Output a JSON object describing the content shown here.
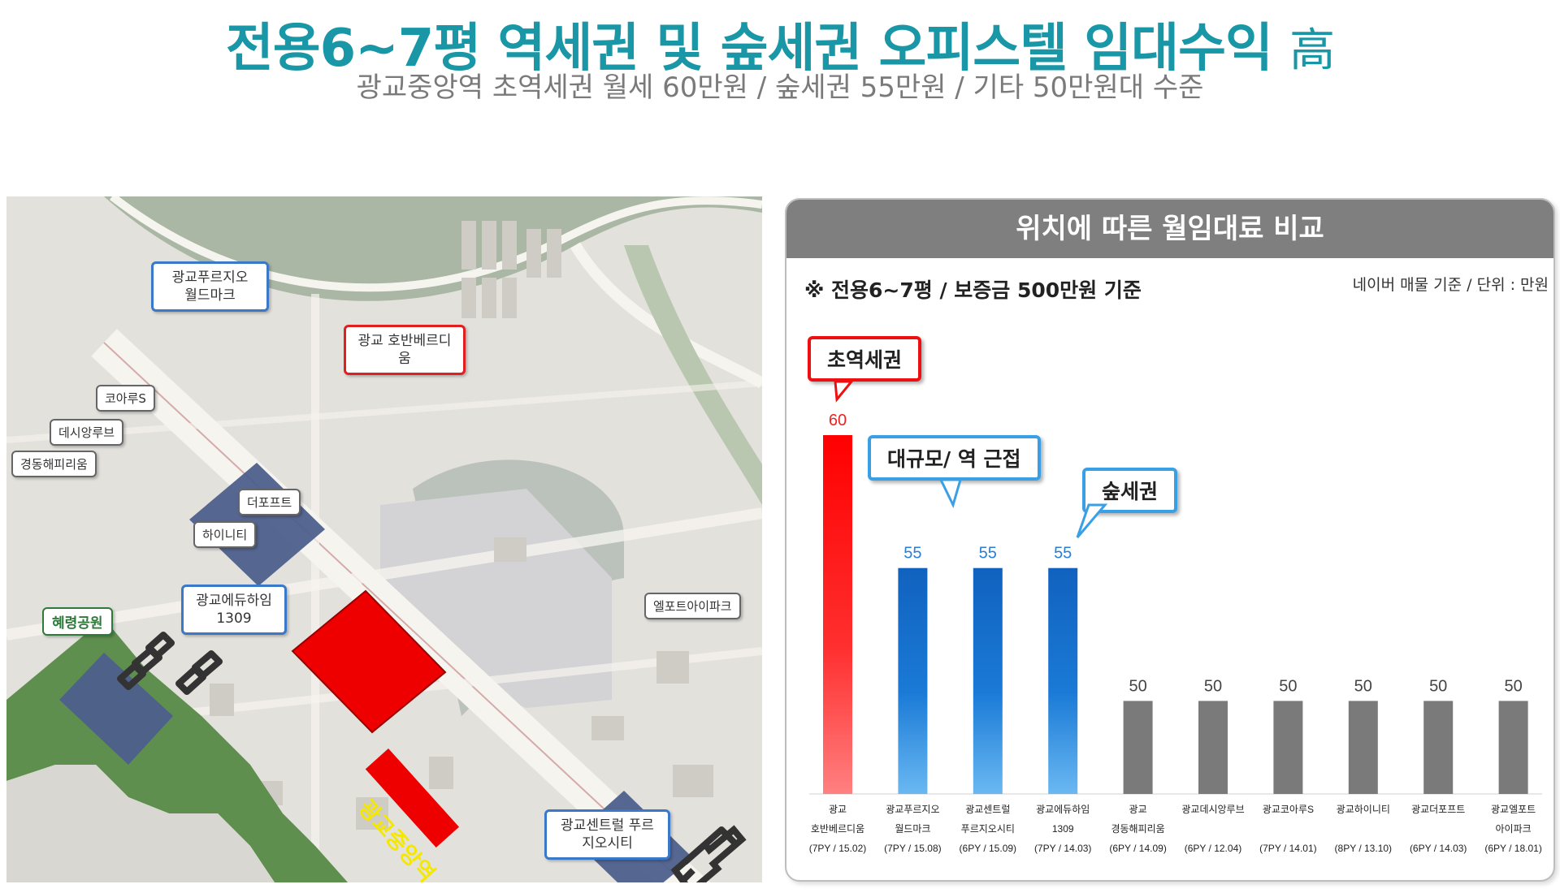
{
  "header": {
    "title": "전용6~7평 역세권 및 숲세권 오피스텔 임대수익",
    "title_suffix": "高",
    "subtitle": "광교중앙역 초역세권 월세 60만원 / 숲세권 55만원 / 기타 50만원대 수준"
  },
  "map": {
    "station": "광교중앙역",
    "park": "혜령공원",
    "callouts": {
      "fuzio_world": "광교푸르지오 월드마크",
      "hoban": "광교 호반베르디움",
      "koarus": "코아루S",
      "desiang": "데시앙루브",
      "gyeongdong": "경동해피리움",
      "theforte": "더포프트",
      "hiniti": "하이니티",
      "eduhaim": "광교에듀하임 1309",
      "elforte": "엘포트아이파크",
      "central": "광교센트럴 푸르지오시티"
    },
    "colors": {
      "highlight": "#ee0000",
      "blocks": "#4d5f8c",
      "park": "#5f8f4e",
      "roads": "#f6f4ef"
    }
  },
  "chart_panel": {
    "header": "위치에 따른 월임대료 비교",
    "note": "※ 전용6~7평 / 보증금 500만원 기준",
    "source": "네이버 매물 기준 / 단위 : 만원",
    "annotations": {
      "station": "초역세권",
      "large": "대규모/ 역 근접",
      "forest": "숲세권"
    }
  },
  "chart_data": {
    "type": "bar",
    "title": "위치에 따른 월임대료 비교",
    "unit": "만원",
    "categories": [
      {
        "name": "광교",
        "name2": "호반베르디움",
        "sub": "(7PY / 15.02)"
      },
      {
        "name": "광교푸르지오",
        "name2": "월드마크",
        "sub": "(7PY / 15.08)"
      },
      {
        "name": "광교센트럴",
        "name2": "푸르지오시티",
        "sub": "(6PY / 15.09)"
      },
      {
        "name": "광교에듀하임",
        "name2": "1309",
        "sub": "(7PY / 14.03)"
      },
      {
        "name": "광교",
        "name2": "경동해피리움",
        "sub": "(6PY / 14.09)"
      },
      {
        "name": "광교데시앙루브",
        "name2": "",
        "sub": "(6PY / 12.04)"
      },
      {
        "name": "광교코아루S",
        "name2": "",
        "sub": "(7PY / 14.01)"
      },
      {
        "name": "광교하이니티",
        "name2": "",
        "sub": "(8PY / 13.10)"
      },
      {
        "name": "광교더포프트",
        "name2": "",
        "sub": "(6PY / 14.03)"
      },
      {
        "name": "광교엘포트",
        "name2": "아이파크",
        "sub": "(6PY / 18.01)"
      }
    ],
    "values": [
      60,
      55,
      55,
      55,
      50,
      50,
      50,
      50,
      50,
      50
    ],
    "groups": [
      "red",
      "blue",
      "blue",
      "blue",
      "gray",
      "gray",
      "gray",
      "gray",
      "gray",
      "gray"
    ],
    "ylim": [
      0,
      60
    ],
    "colors": {
      "red": "#ff1a1a",
      "blue": "#1565c0",
      "gray": "#7a7a7a",
      "red_label": "#ee2222",
      "blue_label": "#2a7fd4",
      "gray_label": "#444444"
    }
  }
}
